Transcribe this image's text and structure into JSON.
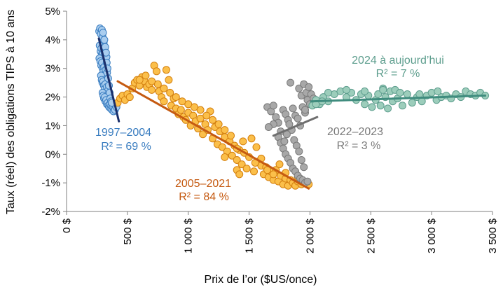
{
  "chart_data": {
    "type": "scatter",
    "title": "",
    "xlabel": "Prix de l’or ($US/once)",
    "ylabel": "Taux (réel) des obligations TIPS à 10 ans",
    "xlim": [
      0,
      3500
    ],
    "ylim": [
      -2,
      5
    ],
    "x_ticks": [
      0,
      500,
      1000,
      1500,
      2000,
      2500,
      3000,
      3500
    ],
    "x_tick_labels": [
      "0 $",
      "500 $",
      "1 000 $",
      "1 500 $",
      "2 000 $",
      "2 500 $",
      "3 000 $",
      "3 500 $"
    ],
    "y_ticks": [
      5,
      4,
      3,
      2,
      1,
      0,
      -1,
      -2
    ],
    "y_tick_labels": [
      "5%",
      "4%",
      "3%",
      "2%",
      "1%",
      "0%",
      "-1%",
      "-2%"
    ],
    "grid": false,
    "series": [
      {
        "name": "1997–2004",
        "r2_label": "R² = 69 %",
        "color": "#3a7dc0",
        "fill": "#a9cdef",
        "trend_color": "#1a2f6b",
        "trend": [
          [
            265,
            4.05
          ],
          [
            430,
            1.15
          ]
        ],
        "points": [
          [
            268,
            4.3
          ],
          [
            275,
            4.4
          ],
          [
            282,
            4.2
          ],
          [
            290,
            4.35
          ],
          [
            296,
            4.1
          ],
          [
            300,
            4.25
          ],
          [
            305,
            3.9
          ],
          [
            310,
            4.0
          ],
          [
            272,
            3.8
          ],
          [
            280,
            3.6
          ],
          [
            286,
            3.7
          ],
          [
            292,
            3.5
          ],
          [
            298,
            3.55
          ],
          [
            304,
            3.65
          ],
          [
            310,
            3.45
          ],
          [
            316,
            3.6
          ],
          [
            322,
            3.3
          ],
          [
            328,
            3.4
          ],
          [
            270,
            3.35
          ],
          [
            278,
            3.25
          ],
          [
            285,
            3.1
          ],
          [
            291,
            3.2
          ],
          [
            297,
            3.0
          ],
          [
            303,
            2.9
          ],
          [
            309,
            3.05
          ],
          [
            315,
            2.8
          ],
          [
            321,
            2.95
          ],
          [
            327,
            2.7
          ],
          [
            333,
            2.85
          ],
          [
            283,
            2.75
          ],
          [
            289,
            2.6
          ],
          [
            295,
            2.5
          ],
          [
            301,
            2.55
          ],
          [
            307,
            2.4
          ],
          [
            313,
            2.3
          ],
          [
            319,
            2.45
          ],
          [
            325,
            2.2
          ],
          [
            331,
            2.35
          ],
          [
            337,
            2.1
          ],
          [
            343,
            2.25
          ],
          [
            296,
            2.15
          ],
          [
            302,
            2.05
          ],
          [
            308,
            1.95
          ],
          [
            314,
            2.0
          ],
          [
            320,
            1.85
          ],
          [
            326,
            1.9
          ],
          [
            332,
            1.75
          ],
          [
            338,
            1.8
          ],
          [
            344,
            1.7
          ],
          [
            350,
            1.65
          ],
          [
            356,
            1.75
          ],
          [
            362,
            1.6
          ],
          [
            368,
            1.7
          ],
          [
            374,
            1.55
          ],
          [
            380,
            1.65
          ],
          [
            386,
            1.5
          ],
          [
            392,
            1.6
          ],
          [
            398,
            1.55
          ],
          [
            404,
            1.7
          ],
          [
            410,
            1.65
          ],
          [
            318,
            3.75
          ],
          [
            324,
            3.55
          ],
          [
            330,
            3.2
          ],
          [
            336,
            3.0
          ],
          [
            342,
            2.65
          ],
          [
            348,
            2.4
          ],
          [
            354,
            2.15
          ],
          [
            360,
            1.95
          ],
          [
            366,
            1.85
          ],
          [
            372,
            1.8
          ]
        ]
      },
      {
        "name": "2005–2021",
        "r2_label": "R² = 84 %",
        "color": "#d4800f",
        "fill": "#fbbf4a",
        "trend_color": "#c55a11",
        "trend": [
          [
            420,
            2.55
          ],
          [
            1990,
            -1.2
          ]
        ],
        "points": [
          [
            420,
            1.8
          ],
          [
            440,
            1.95
          ],
          [
            460,
            2.05
          ],
          [
            480,
            1.9
          ],
          [
            500,
            2.1
          ],
          [
            520,
            2.0
          ],
          [
            540,
            2.3
          ],
          [
            560,
            2.5
          ],
          [
            580,
            2.6
          ],
          [
            600,
            2.4
          ],
          [
            620,
            2.7
          ],
          [
            640,
            2.55
          ],
          [
            660,
            2.35
          ],
          [
            680,
            2.45
          ],
          [
            700,
            2.25
          ],
          [
            720,
            3.1
          ],
          [
            740,
            2.9
          ],
          [
            760,
            2.2
          ],
          [
            780,
            2.0
          ],
          [
            800,
            1.85
          ],
          [
            820,
            2.95
          ],
          [
            840,
            2.6
          ],
          [
            860,
            1.7
          ],
          [
            880,
            1.95
          ],
          [
            900,
            1.6
          ],
          [
            920,
            1.4
          ],
          [
            940,
            1.55
          ],
          [
            960,
            1.3
          ],
          [
            980,
            1.2
          ],
          [
            1000,
            1.45
          ],
          [
            1020,
            1.0
          ],
          [
            1040,
            1.35
          ],
          [
            1060,
            1.15
          ],
          [
            1080,
            0.9
          ],
          [
            1100,
            1.25
          ],
          [
            1120,
            0.7
          ],
          [
            1140,
            1.05
          ],
          [
            1160,
            0.85
          ],
          [
            1180,
            1.5
          ],
          [
            1200,
            0.55
          ],
          [
            1220,
            0.95
          ],
          [
            1240,
            0.35
          ],
          [
            1260,
            0.8
          ],
          [
            1280,
            0.25
          ],
          [
            1300,
            0.6
          ],
          [
            1320,
            0.1
          ],
          [
            1340,
            0.45
          ],
          [
            1360,
            -0.05
          ],
          [
            1380,
            0.3
          ],
          [
            1400,
            -0.2
          ],
          [
            1420,
            0.15
          ],
          [
            1440,
            -0.35
          ],
          [
            1460,
            0.05
          ],
          [
            1480,
            -0.5
          ],
          [
            1500,
            -0.1
          ],
          [
            1520,
            0.55
          ],
          [
            1540,
            -0.6
          ],
          [
            1560,
            0.25
          ],
          [
            1580,
            -0.25
          ],
          [
            1600,
            -0.4
          ],
          [
            1620,
            -0.7
          ],
          [
            1640,
            -0.45
          ],
          [
            1660,
            -0.8
          ],
          [
            1680,
            -0.6
          ],
          [
            1700,
            -0.9
          ],
          [
            1720,
            -0.55
          ],
          [
            1740,
            -0.95
          ],
          [
            1760,
            -0.75
          ],
          [
            1780,
            -1.05
          ],
          [
            1800,
            -0.85
          ],
          [
            1820,
            -1.1
          ],
          [
            1840,
            -0.9
          ],
          [
            1860,
            -1.0
          ],
          [
            1880,
            -1.1
          ],
          [
            1900,
            -0.95
          ],
          [
            1930,
            -1.05
          ],
          [
            1960,
            -1.0
          ],
          [
            1990,
            -1.05
          ],
          [
            1300,
            0.85
          ],
          [
            1350,
            0.65
          ],
          [
            1450,
            0.45
          ],
          [
            1400,
            0.2
          ],
          [
            1250,
            1.05
          ],
          [
            1200,
            1.2
          ],
          [
            1150,
            1.35
          ],
          [
            1100,
            1.55
          ],
          [
            1050,
            1.65
          ],
          [
            1000,
            1.75
          ],
          [
            950,
            1.85
          ],
          [
            900,
            2.0
          ],
          [
            850,
            2.15
          ],
          [
            800,
            2.3
          ],
          [
            750,
            2.45
          ],
          [
            700,
            2.55
          ],
          [
            650,
            2.75
          ],
          [
            600,
            2.6
          ],
          [
            1550,
            -0.3
          ],
          [
            1600,
            -0.15
          ],
          [
            1650,
            -0.55
          ],
          [
            1700,
            -0.7
          ],
          [
            1750,
            -0.35
          ],
          [
            1800,
            -0.65
          ],
          [
            1900,
            -0.8
          ],
          [
            1400,
            -0.55
          ],
          [
            1420,
            -0.7
          ],
          [
            1300,
            -0.1
          ]
        ]
      },
      {
        "name": "2022–2023",
        "r2_label": "R² = 3 %",
        "color": "#7a7a7a",
        "fill": "#a8a8a8",
        "trend_color": "#6f6f6f",
        "trend": [
          [
            1700,
            0.65
          ],
          [
            2060,
            1.3
          ]
        ],
        "points": [
          [
            1650,
            1.65
          ],
          [
            1680,
            1.5
          ],
          [
            1700,
            1.7
          ],
          [
            1720,
            1.3
          ],
          [
            1740,
            1.1
          ],
          [
            1760,
            0.8
          ],
          [
            1780,
            1.55
          ],
          [
            1800,
            1.4
          ],
          [
            1820,
            1.2
          ],
          [
            1840,
            2.5
          ],
          [
            1860,
            1.6
          ],
          [
            1880,
            1.35
          ],
          [
            1900,
            1.25
          ],
          [
            1910,
            2.3
          ],
          [
            1920,
            1.0
          ],
          [
            1930,
            2.05
          ],
          [
            1940,
            1.65
          ],
          [
            1950,
            2.45
          ],
          [
            1960,
            1.45
          ],
          [
            1970,
            2.15
          ],
          [
            1980,
            1.9
          ],
          [
            1990,
            2.35
          ],
          [
            2000,
            1.75
          ],
          [
            2010,
            2.1
          ],
          [
            2030,
            1.95
          ],
          [
            1740,
            0.6
          ],
          [
            1760,
            0.4
          ],
          [
            1780,
            0.2
          ],
          [
            1800,
            0.0
          ],
          [
            1820,
            -0.15
          ],
          [
            1840,
            -0.3
          ],
          [
            1860,
            -0.5
          ],
          [
            1880,
            -0.6
          ],
          [
            1900,
            -0.75
          ],
          [
            1920,
            -0.85
          ],
          [
            1940,
            -0.9
          ],
          [
            1960,
            -1.0
          ],
          [
            1980,
            -0.95
          ],
          [
            1870,
            0.5
          ],
          [
            1890,
            0.3
          ],
          [
            1910,
            0.1
          ],
          [
            1930,
            -0.2
          ],
          [
            1950,
            -0.45
          ],
          [
            1850,
            0.85
          ],
          [
            1830,
            1.05
          ],
          [
            1810,
            0.7
          ],
          [
            1790,
            0.45
          ],
          [
            1700,
            1.05
          ],
          [
            1660,
            0.95
          ],
          [
            1960,
            1.55
          ]
        ]
      },
      {
        "name": "2024 à aujourd’hui",
        "r2_label": "R² = 7 %",
        "color": "#5e9e8e",
        "fill": "#9ccdbb",
        "trend_color": "#3f8c7e",
        "trend": [
          [
            2010,
            1.85
          ],
          [
            3440,
            2.05
          ]
        ],
        "points": [
          [
            2020,
            1.7
          ],
          [
            2050,
            1.9
          ],
          [
            2080,
            1.75
          ],
          [
            2110,
            2.0
          ],
          [
            2150,
            1.85
          ],
          [
            2200,
            2.1
          ],
          [
            2250,
            2.2
          ],
          [
            2300,
            2.0
          ],
          [
            2340,
            2.15
          ],
          [
            2380,
            1.9
          ],
          [
            2420,
            2.1
          ],
          [
            2450,
            1.75
          ],
          [
            2480,
            2.05
          ],
          [
            2510,
            1.65
          ],
          [
            2540,
            1.9
          ],
          [
            2560,
            2.1
          ],
          [
            2580,
            1.7
          ],
          [
            2600,
            2.3
          ],
          [
            2620,
            2.0
          ],
          [
            2640,
            1.6
          ],
          [
            2660,
            2.2
          ],
          [
            2680,
            1.85
          ],
          [
            2700,
            2.25
          ],
          [
            2720,
            1.95
          ],
          [
            2740,
            2.15
          ],
          [
            2760,
            1.7
          ],
          [
            2800,
            2.1
          ],
          [
            2840,
            1.8
          ],
          [
            2880,
            2.0
          ],
          [
            2920,
            1.85
          ],
          [
            2960,
            2.05
          ],
          [
            3000,
            2.15
          ],
          [
            3040,
            1.9
          ],
          [
            3080,
            2.0
          ],
          [
            3120,
            2.05
          ],
          [
            3160,
            1.95
          ],
          [
            3200,
            2.1
          ],
          [
            3240,
            2.0
          ],
          [
            3280,
            2.2
          ],
          [
            3320,
            2.1
          ],
          [
            3360,
            2.05
          ],
          [
            3400,
            2.15
          ],
          [
            3440,
            2.05
          ],
          [
            2150,
            2.15
          ],
          [
            2300,
            2.25
          ],
          [
            2450,
            2.2
          ],
          [
            2600,
            2.25
          ],
          [
            2900,
            2.1
          ],
          [
            3050,
            2.2
          ],
          [
            2050,
            1.75
          ],
          [
            2100,
            1.85
          ]
        ]
      }
    ]
  }
}
